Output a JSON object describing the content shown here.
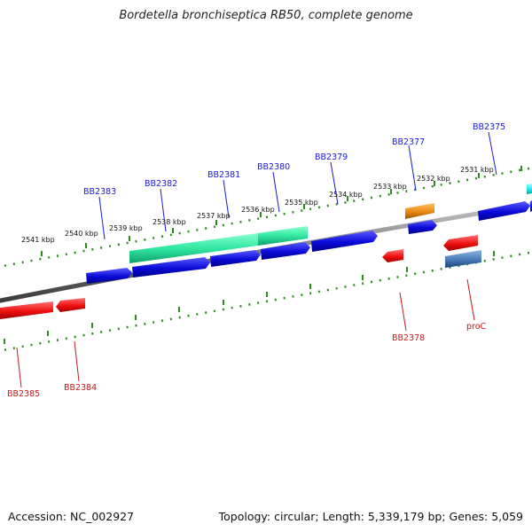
{
  "title": "Bordetella bronchiseptica RB50, complete genome",
  "footer": {
    "accession": "Accession: NC_002927",
    "topology": "Topology: circular; Length: 5,339,179 bp; Genes: 5,059"
  },
  "colors": {
    "background": "#ffffff",
    "backbone": "#7a7a7a",
    "tick": "#2e8b1e",
    "forward_gene": "#1010d8",
    "reverse_gene": "#e81010",
    "rrna_like": "#2ee8a0",
    "orange_gene": "#e88a10",
    "cyan_gene": "#20e8e8",
    "steel_gene": "#4a7ab8",
    "forward_label": "#1818d8",
    "reverse_label": "#c81818"
  },
  "scale_labels": [
    "2541 kbp",
    "2540 kbp",
    "2539 kbp",
    "2538 kbp",
    "2537 kbp",
    "2536 kbp",
    "2535 kbp",
    "2534 kbp",
    "2533 kbp",
    "2532 kbp",
    "2531 kbp"
  ],
  "forward_labels": [
    "BB2383",
    "BB2382",
    "BB2381",
    "BB2380",
    "BB2379",
    "BB2377",
    "BB2375"
  ],
  "reverse_labels": [
    "BB2385",
    "BB2384",
    "BB2378",
    "proC"
  ]
}
